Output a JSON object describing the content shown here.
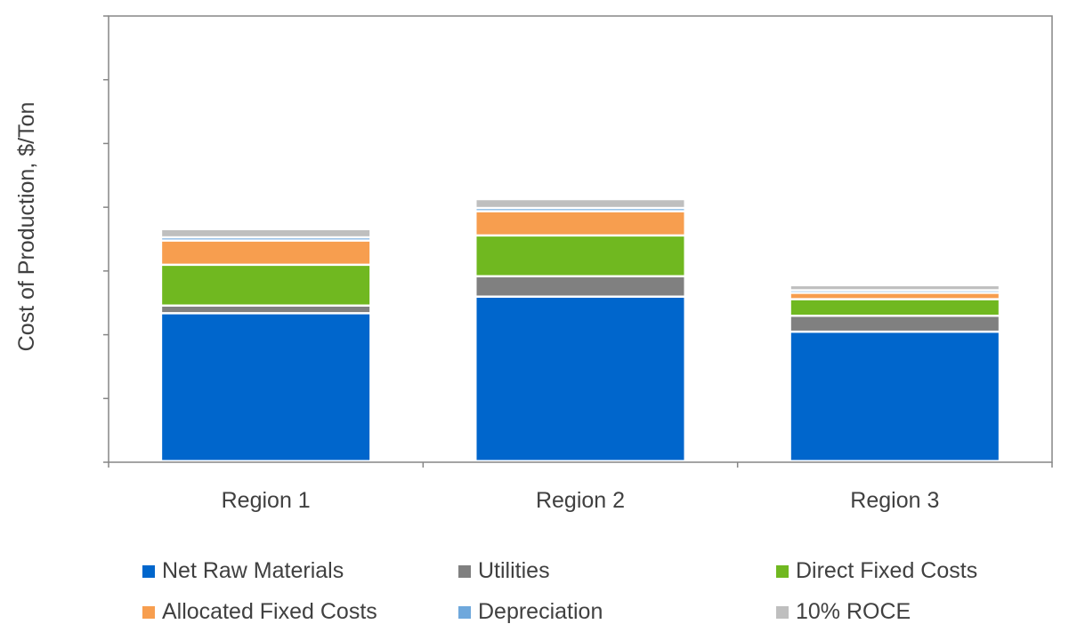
{
  "chart_data": {
    "type": "bar",
    "stacked": true,
    "title": "",
    "xlabel": "",
    "ylabel": "Cost of Production, $/Ton",
    "ylim": [
      0,
      7
    ],
    "y_tick_labels_shown": false,
    "categories": [
      "Region 1",
      "Region 2",
      "Region 3"
    ],
    "series": [
      {
        "name": "Net Raw Materials",
        "color": "#0066CC",
        "values": [
          2.32,
          2.58,
          2.03
        ]
      },
      {
        "name": "Utilities",
        "color": "#808080",
        "values": [
          0.12,
          0.32,
          0.25
        ]
      },
      {
        "name": "Direct Fixed Costs",
        "color": "#70B820",
        "values": [
          0.64,
          0.64,
          0.26
        ]
      },
      {
        "name": "Allocated Fixed Costs",
        "color": "#F79E4F",
        "values": [
          0.38,
          0.38,
          0.1
        ]
      },
      {
        "name": "Depreciation",
        "color": "#6FA8DC",
        "values": [
          0.05,
          0.05,
          0.04
        ]
      },
      {
        "name": "10% ROCE",
        "color": "#BFBFBF",
        "values": [
          0.13,
          0.14,
          0.08
        ]
      }
    ],
    "legend_position": "bottom"
  }
}
